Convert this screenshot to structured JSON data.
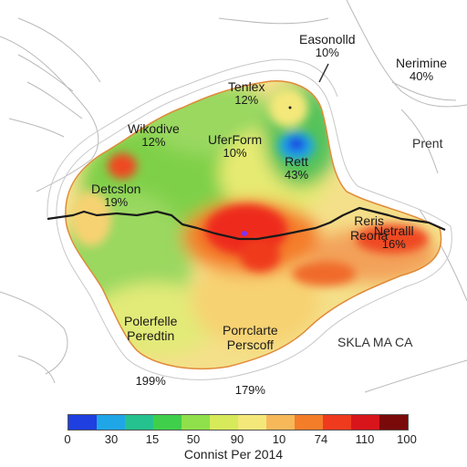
{
  "map": {
    "regions": [
      {
        "id": "easonolld",
        "name": "Easonolld",
        "value": "10%"
      },
      {
        "id": "nerimine",
        "name": "Nerimine",
        "value": "40%"
      },
      {
        "id": "tenlex",
        "name": "Tenlex",
        "value": "12%"
      },
      {
        "id": "wikodive",
        "name": "Wikodive",
        "value": "12%"
      },
      {
        "id": "uferform",
        "name": "UferForm",
        "value": "10%"
      },
      {
        "id": "rett",
        "name": "Rett",
        "value": "43%"
      },
      {
        "id": "prent",
        "name": "Prent",
        "value": ""
      },
      {
        "id": "detcslon",
        "name": "Detcslon",
        "value": "19%"
      },
      {
        "id": "reris-reona",
        "name": "Reris\nReona",
        "value": ""
      },
      {
        "id": "netralll",
        "name": "Netralll",
        "value": "16%"
      },
      {
        "id": "polerfelle",
        "name": "Polerfelle\nPeredtin",
        "value": "199%"
      },
      {
        "id": "porrclarte",
        "name": "Porrclarte\nPerscoff",
        "value": "179%"
      },
      {
        "id": "skla-ma-ca",
        "name": "SKLA MA CA",
        "value": ""
      }
    ]
  },
  "legend": {
    "colors": [
      "#1f3fe0",
      "#1fa6e6",
      "#25c28f",
      "#3fcf4a",
      "#8fe04a",
      "#d6ea5a",
      "#f4e87a",
      "#f7b85a",
      "#f47d2a",
      "#ef3a1e",
      "#d8151b",
      "#7a0a0a"
    ],
    "ticks": [
      "0",
      "30",
      "15",
      "50",
      "90",
      "10",
      "74",
      "110",
      "100"
    ],
    "title": "Connist Per 2014"
  }
}
